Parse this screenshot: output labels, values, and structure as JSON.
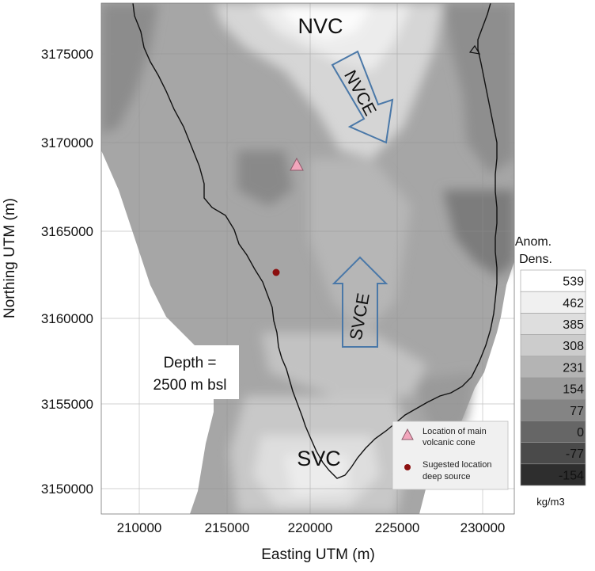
{
  "title": "",
  "axes": {
    "xlabel": "Easting UTM (m)",
    "ylabel": "Northing UTM (m)",
    "xticks": [
      "210000",
      "215000",
      "220000",
      "225000",
      "230000"
    ],
    "yticks": [
      "3175000",
      "3170000",
      "3165000",
      "3160000",
      "3155000",
      "3150000"
    ]
  },
  "colorbar": {
    "title_line1": "Anom.",
    "title_line2": "Dens.",
    "labels": [
      "539",
      "462",
      "385",
      "308",
      "231",
      "154",
      "77",
      "0",
      "-77",
      "-154"
    ],
    "colors": [
      "#ffffff",
      "#f0f0f0",
      "#dedede",
      "#cccccc",
      "#b4b4b4",
      "#9c9c9c",
      "#848484",
      "#666666",
      "#4a4a4a",
      "#2e2e2e"
    ],
    "unit": "kg/m3"
  },
  "annotations": {
    "nvc": "NVC",
    "svc": "SVC",
    "nvce": "NVCE",
    "svce": "SVCE",
    "depth_line1": "Depth =",
    "depth_line2": "2500 m bsl"
  },
  "legend": {
    "cone_line1": "Location of main",
    "cone_line2": "volcanic cone",
    "source_line1": "Sugested location",
    "source_line2": "deep source"
  },
  "colors": {
    "arrow_stroke": "#4a78a8",
    "cone_marker": "#f2a6bc",
    "source_marker": "#8b0f0f"
  }
}
